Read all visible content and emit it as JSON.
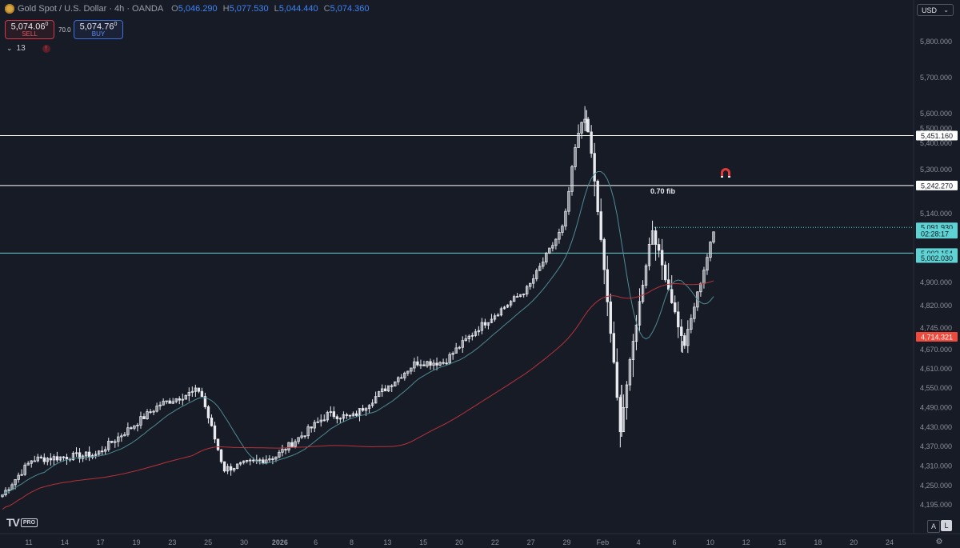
{
  "header": {
    "symbol": "Gold Spot / U.S. Dollar · 4h · OANDA",
    "open_label": "O",
    "open": "5,046.290",
    "high_label": "H",
    "high": "5,077.530",
    "low_label": "L",
    "low": "5,044.440",
    "close_label": "C",
    "close": "5,074.360"
  },
  "trade": {
    "sell_price": "5,074.06",
    "sell_price_sup": "0",
    "sell_label": "SELL",
    "spread": "70.0",
    "buy_price": "5,074.76",
    "buy_price_sup": "0",
    "buy_label": "BUY"
  },
  "indicators": {
    "count": "13"
  },
  "currency": "USD",
  "fib_label": "0.70 fib",
  "price_axis": [
    {
      "label": "5,800.000",
      "value": 5800
    },
    {
      "label": "5,700.000",
      "value": 5700
    },
    {
      "label": "5,600.000",
      "value": 5600
    },
    {
      "label": "5,500.000",
      "value": 5500
    },
    {
      "label": "5,400.000",
      "value": 5400
    },
    {
      "label": "5,300.000",
      "value": 5300
    },
    {
      "label": "5,140.000",
      "value": 5140
    },
    {
      "label": "4,900.000",
      "value": 4900
    },
    {
      "label": "4,820.000",
      "value": 4820
    },
    {
      "label": "4,745.000",
      "value": 4745
    },
    {
      "label": "4,670.000",
      "value": 4670
    },
    {
      "label": "4,610.000",
      "value": 4610
    },
    {
      "label": "4,550.000",
      "value": 4550
    },
    {
      "label": "4,490.000",
      "value": 4490
    },
    {
      "label": "4,430.000",
      "value": 4430
    },
    {
      "label": "4,370.000",
      "value": 4370
    },
    {
      "label": "4,310.000",
      "value": 4310
    },
    {
      "label": "4,250.000",
      "value": 4250
    },
    {
      "label": "4,195.000",
      "value": 4195
    }
  ],
  "price_tags": [
    {
      "label": "5,451.160",
      "value": 5451.16,
      "bg": "#ffffff",
      "fg": "#131722"
    },
    {
      "label": "5,242.270",
      "value": 5242.27,
      "bg": "#ffffff",
      "fg": "#131722"
    },
    {
      "label": "5,091.930",
      "value": 5091.93,
      "bg": "#5fd3d3",
      "fg": "#131722"
    },
    {
      "label": "02:28:17",
      "value": 5070,
      "bg": "#5fd3d3",
      "fg": "#131722"
    },
    {
      "label": "5,002.154",
      "value": 5002.154,
      "bg": "#5fd3d3",
      "fg": "#131722"
    },
    {
      "label": "5,002.030",
      "value": 4985,
      "bg": "#5fd3d3",
      "fg": "#131722"
    },
    {
      "label": "4,714.321",
      "value": 4714.321,
      "bg": "#ef4a3c",
      "fg": "#ffffff"
    }
  ],
  "time_axis": [
    "11",
    "14",
    "17",
    "19",
    "23",
    "25",
    "30",
    "2026",
    "6",
    "8",
    "13",
    "15",
    "20",
    "22",
    "27",
    "29",
    "Feb",
    "4",
    "6",
    "10",
    "12",
    "15",
    "18",
    "20",
    "24"
  ],
  "horizontal_lines": [
    {
      "value": 5451.16,
      "color": "#ffffff"
    },
    {
      "value": 5242.27,
      "color": "#ffffff"
    },
    {
      "value": 5002.154,
      "color": "#5fd3d3"
    }
  ],
  "colors": {
    "background": "#171b26",
    "candle": "#e8eaf0",
    "ma_short": "#4f8a93",
    "ma_long": "#b8323a"
  },
  "icons": {
    "magnet": "magnet-icon",
    "settings": "gear-icon",
    "alert": "warning-icon"
  },
  "chart_data": {
    "type": "candlestick",
    "symbol": "XAUUSD",
    "timeframe": "4h",
    "ylim": [
      4150,
      5850
    ],
    "swing_points": [
      {
        "date": "11",
        "price": 4215
      },
      {
        "date": "14",
        "price": 4330
      },
      {
        "date": "19",
        "price": 4345
      },
      {
        "date": "23",
        "price": 4500
      },
      {
        "date": "25",
        "price": 4545
      },
      {
        "date": "30",
        "price": 4300
      },
      {
        "date": "2026",
        "price": 4340
      },
      {
        "date": "6",
        "price": 4470
      },
      {
        "date": "8",
        "price": 4460
      },
      {
        "date": "13",
        "price": 4630
      },
      {
        "date": "15",
        "price": 4630
      },
      {
        "date": "20",
        "price": 4750
      },
      {
        "date": "22",
        "price": 4880
      },
      {
        "date": "27",
        "price": 5100
      },
      {
        "date": "29",
        "price": 5600
      },
      {
        "date": "Feb",
        "price": 4420
      },
      {
        "date": "4",
        "price": 5090
      },
      {
        "date": "6",
        "price": 4680
      },
      {
        "date": "6",
        "price": 5075
      }
    ]
  }
}
